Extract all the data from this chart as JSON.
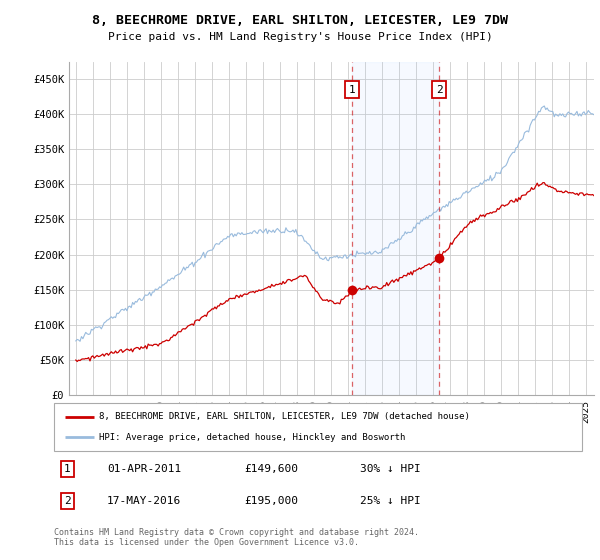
{
  "title_line1": "8, BEECHROME DRIVE, EARL SHILTON, LEICESTER, LE9 7DW",
  "title_line2": "Price paid vs. HM Land Registry's House Price Index (HPI)",
  "ylabel_ticks": [
    "£0",
    "£50K",
    "£100K",
    "£150K",
    "£200K",
    "£250K",
    "£300K",
    "£350K",
    "£400K",
    "£450K"
  ],
  "ytick_values": [
    0,
    50000,
    100000,
    150000,
    200000,
    250000,
    300000,
    350000,
    400000,
    450000
  ],
  "ylim": [
    0,
    475000
  ],
  "xlim_start": 1994.6,
  "xlim_end": 2025.5,
  "red_line_color": "#cc0000",
  "blue_line_color": "#99bbdd",
  "grid_color": "#cccccc",
  "background_color": "#ffffff",
  "sale1_x": 2011.25,
  "sale1_y": 149600,
  "sale2_x": 2016.38,
  "sale2_y": 195000,
  "legend_label1": "8, BEECHROME DRIVE, EARL SHILTON, LEICESTER, LE9 7DW (detached house)",
  "legend_label2": "HPI: Average price, detached house, Hinckley and Bosworth",
  "table_row1": [
    "1",
    "01-APR-2011",
    "£149,600",
    "30% ↓ HPI"
  ],
  "table_row2": [
    "2",
    "17-MAY-2016",
    "£195,000",
    "25% ↓ HPI"
  ],
  "footnote": "Contains HM Land Registry data © Crown copyright and database right 2024.\nThis data is licensed under the Open Government Licence v3.0."
}
